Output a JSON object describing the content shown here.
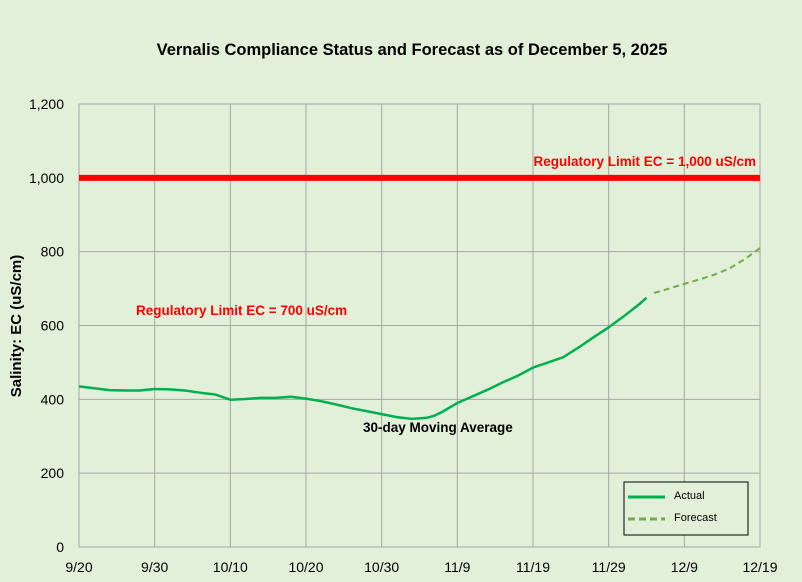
{
  "chart_data": {
    "type": "line",
    "title": "Vernalis Compliance Status and Forecast as of December 5, 2025",
    "xlabel": "",
    "ylabel": "Salinity: EC (uS/cm)",
    "x_ticks": [
      "9/20",
      "9/30",
      "10/10",
      "10/20",
      "10/30",
      "11/9",
      "11/19",
      "11/29",
      "12/9",
      "12/19"
    ],
    "y_ticks": [
      "0",
      "200",
      "400",
      "600",
      "800",
      "1,000",
      "1,200"
    ],
    "ylim": [
      0,
      1200
    ],
    "xlim": [
      "2025-09-20",
      "2025-12-19"
    ],
    "grid": "vertical and horizontal",
    "legend_position": "bottom-right",
    "colors": {
      "actual": "#00b050",
      "forecast": "#70ad47",
      "limit": "#ff0000",
      "background": "#e2efd9"
    },
    "series": [
      {
        "name": "Actual",
        "style": "solid",
        "x": [
          "2025-09-20",
          "2025-09-22",
          "2025-09-24",
          "2025-09-26",
          "2025-09-28",
          "2025-09-30",
          "2025-10-02",
          "2025-10-04",
          "2025-10-06",
          "2025-10-08",
          "2025-10-10",
          "2025-10-12",
          "2025-10-14",
          "2025-10-16",
          "2025-10-18",
          "2025-10-20",
          "2025-10-22",
          "2025-10-24",
          "2025-10-26",
          "2025-10-28",
          "2025-10-30",
          "2025-11-01",
          "2025-11-03",
          "2025-11-05",
          "2025-11-06",
          "2025-11-07",
          "2025-11-09",
          "2025-11-11",
          "2025-11-13",
          "2025-11-15",
          "2025-11-17",
          "2025-11-19",
          "2025-11-21",
          "2025-11-23",
          "2025-11-25",
          "2025-11-27",
          "2025-11-29",
          "2025-12-01",
          "2025-12-03",
          "2025-12-04"
        ],
        "values": [
          435,
          430,
          425,
          424,
          424,
          428,
          427,
          424,
          418,
          413,
          399,
          401,
          404,
          404,
          407,
          402,
          395,
          386,
          376,
          368,
          360,
          352,
          347,
          350,
          356,
          366,
          390,
          408,
          426,
          446,
          464,
          486,
          500,
          514,
          540,
          568,
          595,
          625,
          657,
          675
        ]
      },
      {
        "name": "Forecast",
        "style": "dashed",
        "x": [
          "2025-12-05",
          "2025-12-07",
          "2025-12-09",
          "2025-12-11",
          "2025-12-13",
          "2025-12-15",
          "2025-12-17",
          "2025-12-19"
        ],
        "values": [
          688,
          700,
          713,
          725,
          738,
          755,
          780,
          810
        ]
      }
    ],
    "reference_lines": [
      {
        "label": "Regulatory Limit EC = 1,000 uS/cm",
        "value": 1000,
        "drawn": true
      },
      {
        "label": "Regulatory Limit EC = 700 uS/cm",
        "value": 700,
        "drawn": false
      }
    ],
    "annotations": [
      "30-day Moving Average"
    ]
  }
}
